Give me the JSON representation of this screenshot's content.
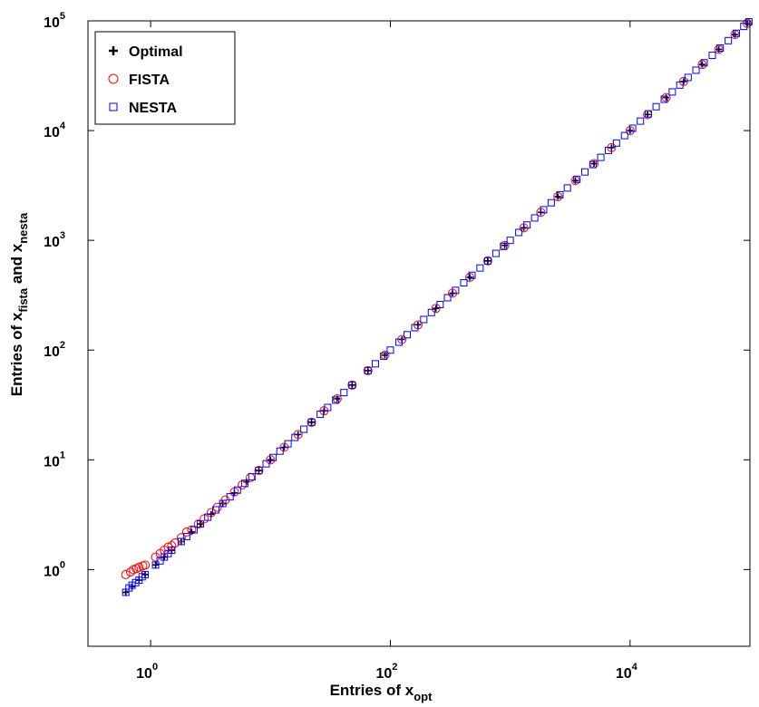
{
  "chart_data": {
    "type": "scatter",
    "x_scale": "log",
    "y_scale": "log",
    "xlim": [
      0.3,
      100000
    ],
    "ylim": [
      0.2,
      100000
    ],
    "grid": false,
    "legend_placement": "top-left",
    "xlabel": {
      "main": "Entries of x",
      "sub": "opt"
    },
    "ylabel": {
      "main": "Entries of x",
      "sub1": "fista",
      "mid": " and x",
      "sub2": "nesta"
    },
    "x_ticks": [
      {
        "value": 1,
        "base": "10",
        "exp": "0"
      },
      {
        "value": 100,
        "base": "10",
        "exp": "2"
      },
      {
        "value": 10000,
        "base": "10",
        "exp": "4"
      }
    ],
    "y_ticks": [
      {
        "value": 1,
        "base": "10",
        "exp": "0"
      },
      {
        "value": 10,
        "base": "10",
        "exp": "1"
      },
      {
        "value": 100,
        "base": "10",
        "exp": "2"
      },
      {
        "value": 1000,
        "base": "10",
        "exp": "3"
      },
      {
        "value": 10000,
        "base": "10",
        "exp": "4"
      },
      {
        "value": 100000,
        "base": "10",
        "exp": "5"
      }
    ],
    "series": [
      {
        "name": "Optimal",
        "marker": "plus",
        "color": "#000000",
        "points": [
          [
            0.62,
            0.62
          ],
          [
            0.7,
            0.7
          ],
          [
            0.8,
            0.8
          ],
          [
            0.9,
            0.9
          ],
          [
            1.1,
            1.1
          ],
          [
            1.3,
            1.3
          ],
          [
            1.5,
            1.5
          ],
          [
            1.8,
            1.8
          ],
          [
            2.2,
            2.2
          ],
          [
            2.6,
            2.6
          ],
          [
            3.2,
            3.2
          ],
          [
            4,
            4
          ],
          [
            5,
            5
          ],
          [
            6.3,
            6.3
          ],
          [
            8,
            8
          ],
          [
            10,
            10
          ],
          [
            13,
            13
          ],
          [
            17,
            17
          ],
          [
            22,
            22
          ],
          [
            28,
            28
          ],
          [
            36,
            36
          ],
          [
            48,
            48
          ],
          [
            65,
            65
          ],
          [
            90,
            90
          ],
          [
            125,
            125
          ],
          [
            170,
            170
          ],
          [
            240,
            240
          ],
          [
            330,
            330
          ],
          [
            460,
            460
          ],
          [
            650,
            650
          ],
          [
            900,
            900
          ],
          [
            1300,
            1300
          ],
          [
            1800,
            1800
          ],
          [
            2500,
            2500
          ],
          [
            3500,
            3500
          ],
          [
            5000,
            5000
          ],
          [
            7000,
            7000
          ],
          [
            10000,
            10000
          ],
          [
            14000,
            14000
          ],
          [
            20000,
            20000
          ],
          [
            28000,
            28000
          ],
          [
            40000,
            40000
          ],
          [
            55000,
            55000
          ],
          [
            75000,
            75000
          ],
          [
            95000,
            95000
          ]
        ]
      },
      {
        "name": "FISTA",
        "marker": "circle",
        "color": "#ff0000",
        "points": [
          [
            0.62,
            0.9
          ],
          [
            0.68,
            0.95
          ],
          [
            0.72,
            1.0
          ],
          [
            0.76,
            1.02
          ],
          [
            0.8,
            1.05
          ],
          [
            0.86,
            1.08
          ],
          [
            0.9,
            1.1
          ],
          [
            1.1,
            1.3
          ],
          [
            1.2,
            1.4
          ],
          [
            1.3,
            1.5
          ],
          [
            1.4,
            1.6
          ],
          [
            1.5,
            1.65
          ],
          [
            1.6,
            1.75
          ],
          [
            1.8,
            1.95
          ],
          [
            2.0,
            2.2
          ],
          [
            2.2,
            2.3
          ],
          [
            2.5,
            2.6
          ],
          [
            2.8,
            2.9
          ],
          [
            3.2,
            3.3
          ],
          [
            3.6,
            3.7
          ],
          [
            4.2,
            4.3
          ],
          [
            5,
            5.1
          ],
          [
            5.8,
            5.9
          ],
          [
            6.8,
            6.9
          ],
          [
            8,
            8
          ],
          [
            10,
            10
          ],
          [
            13,
            13
          ],
          [
            17,
            17
          ],
          [
            22,
            22
          ],
          [
            28,
            28
          ],
          [
            36,
            36
          ],
          [
            48,
            48
          ],
          [
            65,
            65
          ],
          [
            90,
            90
          ],
          [
            125,
            125
          ],
          [
            170,
            170
          ],
          [
            240,
            240
          ],
          [
            330,
            330
          ],
          [
            460,
            460
          ],
          [
            650,
            650
          ],
          [
            900,
            900
          ],
          [
            1300,
            1300
          ],
          [
            1800,
            1800
          ],
          [
            2500,
            2500
          ],
          [
            3500,
            3500
          ],
          [
            5000,
            5000
          ],
          [
            7000,
            7000
          ],
          [
            10000,
            10000
          ],
          [
            14000,
            14000
          ],
          [
            20000,
            20000
          ],
          [
            28000,
            28000
          ],
          [
            40000,
            40000
          ],
          [
            55000,
            55000
          ],
          [
            75000,
            75000
          ],
          [
            95000,
            95000
          ]
        ]
      },
      {
        "name": "NESTA",
        "marker": "square",
        "color": "#0000ff",
        "points": [
          [
            0.62,
            0.62
          ],
          [
            0.66,
            0.68
          ],
          [
            0.7,
            0.72
          ],
          [
            0.75,
            0.76
          ],
          [
            0.8,
            0.8
          ],
          [
            0.85,
            0.86
          ],
          [
            0.9,
            0.9
          ],
          [
            1.1,
            1.1
          ],
          [
            1.2,
            1.2
          ],
          [
            1.3,
            1.3
          ],
          [
            1.4,
            1.4
          ],
          [
            1.5,
            1.5
          ],
          [
            1.8,
            1.8
          ],
          [
            2.0,
            2.0
          ],
          [
            2.3,
            2.3
          ],
          [
            2.6,
            2.6
          ],
          [
            3.0,
            3.0
          ],
          [
            3.5,
            3.5
          ],
          [
            4,
            4
          ],
          [
            4.6,
            4.6
          ],
          [
            5.3,
            5.3
          ],
          [
            6.1,
            6.1
          ],
          [
            7,
            7
          ],
          [
            8,
            8
          ],
          [
            9.2,
            9.2
          ],
          [
            10.5,
            10.5
          ],
          [
            12,
            12
          ],
          [
            14,
            14
          ],
          [
            16,
            16
          ],
          [
            19,
            19
          ],
          [
            22,
            22
          ],
          [
            26,
            26
          ],
          [
            30,
            30
          ],
          [
            35,
            35
          ],
          [
            41,
            41
          ],
          [
            48,
            48
          ],
          [
            65,
            65
          ],
          [
            75,
            75
          ],
          [
            88,
            88
          ],
          [
            100,
            100
          ],
          [
            118,
            118
          ],
          [
            138,
            138
          ],
          [
            160,
            160
          ],
          [
            190,
            190
          ],
          [
            220,
            220
          ],
          [
            260,
            260
          ],
          [
            300,
            300
          ],
          [
            350,
            350
          ],
          [
            410,
            410
          ],
          [
            480,
            480
          ],
          [
            560,
            560
          ],
          [
            650,
            650
          ],
          [
            760,
            760
          ],
          [
            880,
            880
          ],
          [
            1000,
            1000
          ],
          [
            1180,
            1180
          ],
          [
            1380,
            1380
          ],
          [
            1600,
            1600
          ],
          [
            1900,
            1900
          ],
          [
            2200,
            2200
          ],
          [
            2600,
            2600
          ],
          [
            3000,
            3000
          ],
          [
            3600,
            3600
          ],
          [
            4200,
            4200
          ],
          [
            4900,
            4900
          ],
          [
            5700,
            5700
          ],
          [
            6600,
            6600
          ],
          [
            7700,
            7700
          ],
          [
            9000,
            9000
          ],
          [
            10500,
            10500
          ],
          [
            12200,
            12200
          ],
          [
            14200,
            14200
          ],
          [
            16500,
            16500
          ],
          [
            19300,
            19300
          ],
          [
            22500,
            22500
          ],
          [
            26000,
            26000
          ],
          [
            30500,
            30500
          ],
          [
            35500,
            35500
          ],
          [
            41500,
            41500
          ],
          [
            48500,
            48500
          ],
          [
            56500,
            56500
          ],
          [
            66000,
            66000
          ],
          [
            77000,
            77000
          ],
          [
            89000,
            89000
          ],
          [
            98000,
            98000
          ]
        ]
      }
    ]
  }
}
